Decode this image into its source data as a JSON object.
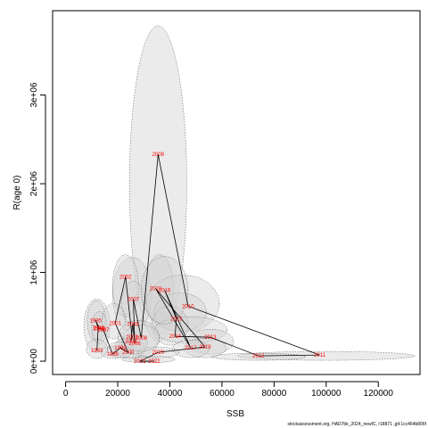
{
  "chart_data": {
    "type": "scatter",
    "title": "",
    "xlabel": "SSB",
    "ylabel": "R(age 0)",
    "xlim": [
      -5000,
      136000
    ],
    "ylim": [
      -150000,
      3950000
    ],
    "x_ticks": [
      0,
      20000,
      40000,
      60000,
      80000,
      100000,
      120000
    ],
    "x_tick_labels": [
      "0",
      "20000",
      "40000",
      "60000",
      "80000",
      "100000",
      "120000"
    ],
    "y_ticks": [
      0,
      1000000,
      2000000,
      3000000
    ],
    "y_tick_labels": [
      "0e+00",
      "1e+06",
      "2e+06",
      "3e+06"
    ],
    "grid": false,
    "connect_points_in_order": true,
    "point_labels": "year",
    "series": [
      {
        "points": [
          {
            "year": "1993",
            "ssb": 12000,
            "r": 120000
          },
          {
            "year": "1994",
            "ssb": 12500,
            "r": 380000
          },
          {
            "year": "1995",
            "ssb": 11500,
            "r": 460000
          },
          {
            "year": "1996",
            "ssb": 13000,
            "r": 370000
          },
          {
            "year": "1997",
            "ssb": 14500,
            "r": 350000
          },
          {
            "year": "1998",
            "ssb": 18000,
            "r": 80000
          },
          {
            "year": "1999",
            "ssb": 21000,
            "r": 150000
          },
          {
            "year": "2000",
            "ssb": 24000,
            "r": 100000
          },
          {
            "year": "2001",
            "ssb": 19000,
            "r": 430000
          },
          {
            "year": "2002",
            "ssb": 23000,
            "r": 950000
          },
          {
            "year": "2003",
            "ssb": 25500,
            "r": 270000
          },
          {
            "year": "2004",
            "ssb": 25000,
            "r": 220000
          },
          {
            "year": "2005",
            "ssb": 25800,
            "r": 420000
          },
          {
            "year": "2006",
            "ssb": 26500,
            "r": 200000
          },
          {
            "year": "2007",
            "ssb": 26000,
            "r": 700000
          },
          {
            "year": "2008",
            "ssb": 29000,
            "r": 260000
          },
          {
            "year": "2009",
            "ssb": 35500,
            "r": 2330000
          },
          {
            "year": "2010",
            "ssb": 47000,
            "r": 620000
          },
          {
            "year": "2011",
            "ssb": 97500,
            "r": 70000
          },
          {
            "year": "2012",
            "ssb": 74000,
            "r": 60000
          },
          {
            "year": "2013",
            "ssb": 55500,
            "r": 270000
          },
          {
            "year": "2014",
            "ssb": 42000,
            "r": 280000
          },
          {
            "year": "2015",
            "ssb": 42500,
            "r": 480000
          },
          {
            "year": "2016",
            "ssb": 38000,
            "r": 800000
          },
          {
            "year": "2017",
            "ssb": 48000,
            "r": 150000
          },
          {
            "year": "2018",
            "ssb": 34500,
            "r": 820000
          },
          {
            "year": "2019",
            "ssb": 53500,
            "r": 160000
          },
          {
            "year": "2020",
            "ssb": 35500,
            "r": 100000
          },
          {
            "year": "2021",
            "ssb": 28500,
            "r": 0
          },
          {
            "year": "2022",
            "ssb": 34000,
            "r": 0
          }
        ]
      }
    ],
    "ellipses": [
      {
        "cx": 35500,
        "cy": 2000000,
        "rx": 11000,
        "ry": 1780000
      },
      {
        "cx": 25500,
        "cy": 750000,
        "rx": 7500,
        "ry": 420000
      },
      {
        "cx": 23000,
        "cy": 850000,
        "rx": 5000,
        "ry": 350000
      },
      {
        "cx": 26000,
        "cy": 650000,
        "rx": 4500,
        "ry": 250000
      },
      {
        "cx": 36000,
        "cy": 800000,
        "rx": 5500,
        "ry": 400000
      },
      {
        "cx": 45000,
        "cy": 650000,
        "rx": 14000,
        "ry": 320000
      },
      {
        "cx": 44000,
        "cy": 550000,
        "rx": 10000,
        "ry": 220000
      },
      {
        "cx": 12000,
        "cy": 400000,
        "rx": 5000,
        "ry": 300000
      },
      {
        "cx": 11800,
        "cy": 450000,
        "rx": 3500,
        "ry": 230000
      },
      {
        "cx": 13000,
        "cy": 380000,
        "rx": 3000,
        "ry": 180000
      },
      {
        "cx": 18500,
        "cy": 450000,
        "rx": 4500,
        "ry": 200000
      },
      {
        "cx": 40000,
        "cy": 400000,
        "rx": 7000,
        "ry": 220000
      },
      {
        "cx": 48000,
        "cy": 350000,
        "rx": 14000,
        "ry": 150000
      },
      {
        "cx": 100000,
        "cy": 60000,
        "rx": 34000,
        "ry": 50000
      },
      {
        "cx": 74000,
        "cy": 50000,
        "rx": 18000,
        "ry": 40000
      },
      {
        "cx": 55500,
        "cy": 220000,
        "rx": 9000,
        "ry": 140000
      },
      {
        "cx": 53500,
        "cy": 150000,
        "rx": 8000,
        "ry": 110000
      },
      {
        "cx": 48000,
        "cy": 140000,
        "rx": 7000,
        "ry": 100000
      },
      {
        "cx": 28000,
        "cy": 260000,
        "rx": 8000,
        "ry": 200000
      },
      {
        "cx": 24500,
        "cy": 150000,
        "rx": 6000,
        "ry": 120000
      },
      {
        "cx": 18500,
        "cy": 100000,
        "rx": 5000,
        "ry": 70000
      },
      {
        "cx": 21000,
        "cy": 130000,
        "rx": 5000,
        "ry": 90000
      },
      {
        "cx": 12000,
        "cy": 140000,
        "rx": 4000,
        "ry": 110000
      },
      {
        "cx": 35500,
        "cy": 100000,
        "rx": 8000,
        "ry": 60000
      },
      {
        "cx": 28500,
        "cy": 20000,
        "rx": 7000,
        "ry": 30000
      },
      {
        "cx": 34000,
        "cy": 20000,
        "rx": 8000,
        "ry": 35000
      },
      {
        "cx": 26500,
        "cy": 200000,
        "rx": 5000,
        "ry": 120000
      },
      {
        "cx": 29000,
        "cy": 260000,
        "rx": 7000,
        "ry": 150000
      },
      {
        "cx": 38000,
        "cy": 800000,
        "rx": 9000,
        "ry": 380000
      }
    ],
    "footer_text": "stockassessment.org, HAD7bk_2024_newIC, r18871 ,git:1cc464b806f"
  },
  "colors": {
    "point_label": "#ff0000",
    "line": "#000000",
    "ellipse_fill": "#d3d3d3",
    "ellipse_stroke": "#555555"
  }
}
